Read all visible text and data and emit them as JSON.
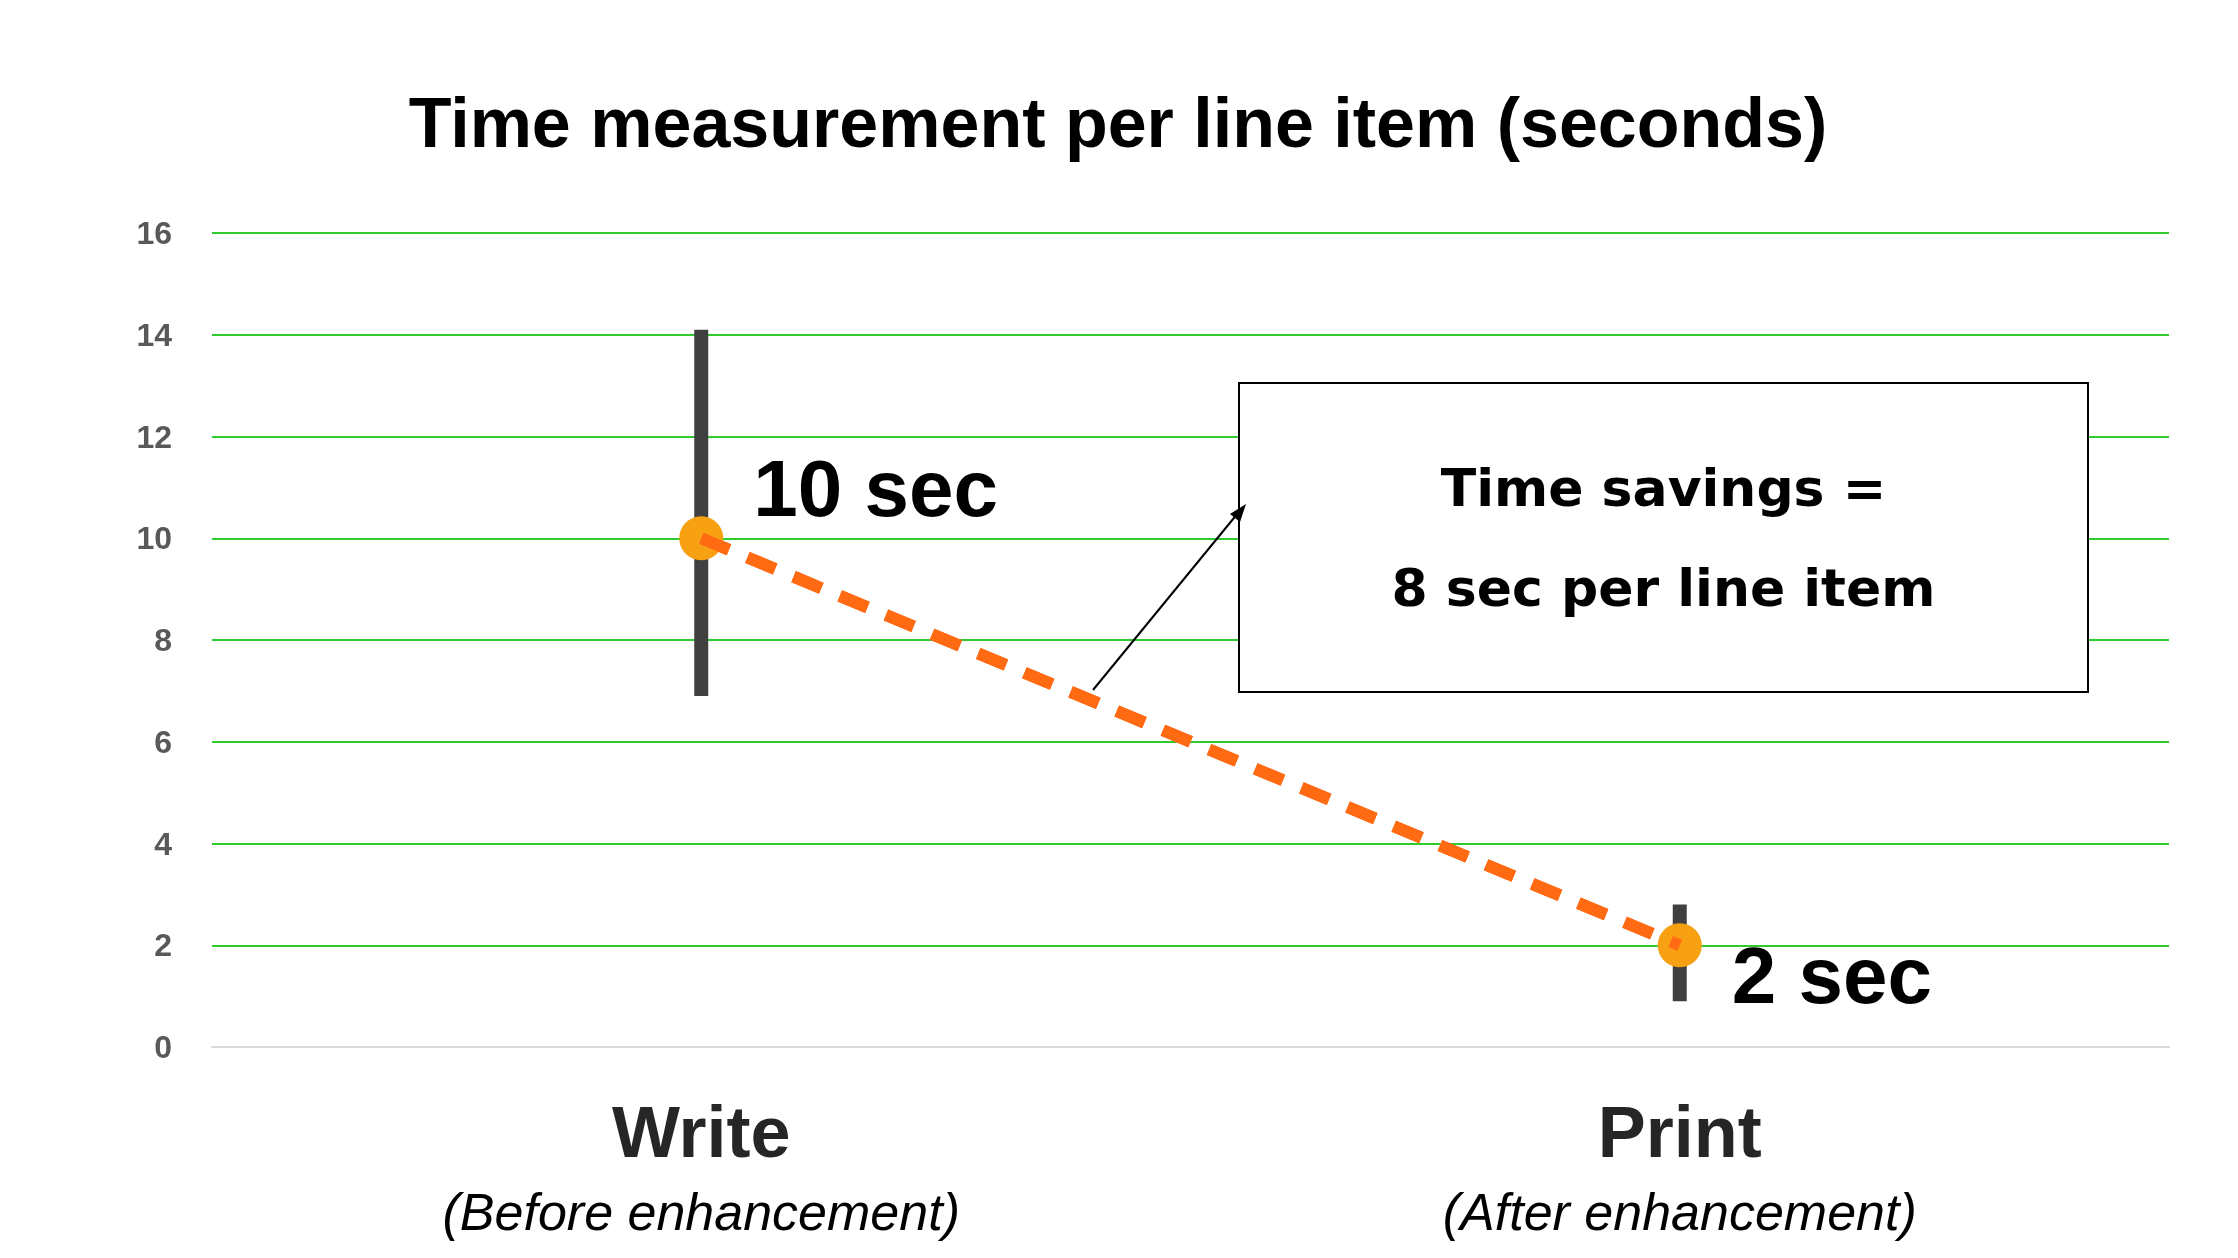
{
  "chart_data": {
    "type": "line",
    "title": "Time measurement per line item (seconds)",
    "categories": [
      "Write\n(Before enhancement)",
      "Print\n(After enhancement)"
    ],
    "series": [
      {
        "color": "#ff6a13",
        "colors": [
          "#f7a011",
          "#f7a011"
        ],
        "values": [
          10,
          2
        ],
        "value_labels": [
          "10 sec",
          "2 sec"
        ],
        "errors": [
          [
            6.9,
            14.1
          ],
          [
            0.9,
            2.8
          ]
        ]
      }
    ],
    "ylim": [
      0,
      16
    ],
    "yticks": [
      0,
      2,
      4,
      6,
      8,
      10,
      12,
      14,
      16
    ],
    "grid": "y",
    "marker": "circle",
    "line_style": "dashed",
    "annotations": [
      "Time savings =\n8 sec per line item"
    ]
  }
}
